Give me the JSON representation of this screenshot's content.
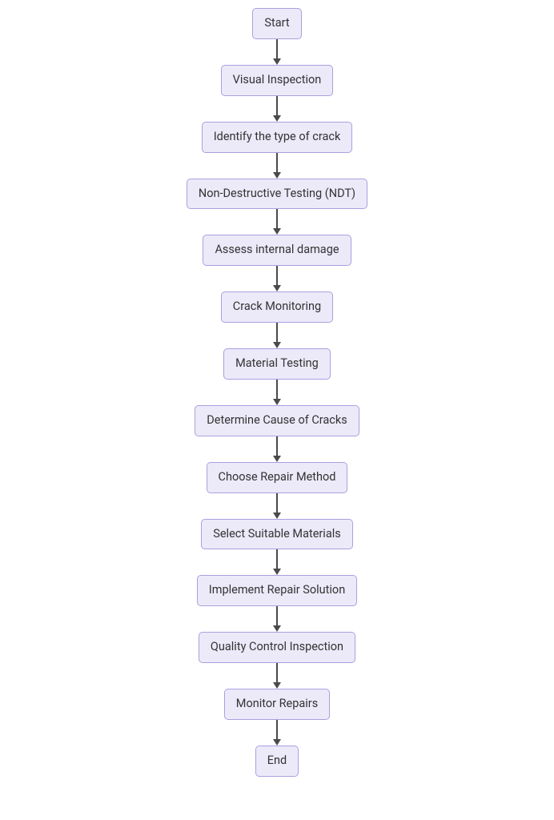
{
  "flowchart": {
    "type": "flowchart",
    "direction": "vertical",
    "background_color": "#ffffff",
    "node_fill": "#eceaf9",
    "node_border": "#a9a0e0",
    "node_text_color": "#333333",
    "node_border_radius": 5,
    "node_border_width": 1,
    "node_fontsize": 14.5,
    "node_font_weight": 400,
    "node_padding_x": 14,
    "node_padding_y": 9,
    "arrow_color": "#4a4a4a",
    "arrow_line_width": 1.5,
    "arrow_gap_height": 32,
    "arrow_head_size": 8,
    "nodes": [
      {
        "id": "start",
        "label": "Start"
      },
      {
        "id": "visual",
        "label": "Visual Inspection"
      },
      {
        "id": "identify",
        "label": "Identify the type of crack"
      },
      {
        "id": "ndt",
        "label": "Non-Destructive Testing (NDT)"
      },
      {
        "id": "assess",
        "label": "Assess internal damage"
      },
      {
        "id": "monitor",
        "label": "Crack Monitoring"
      },
      {
        "id": "material",
        "label": "Material Testing"
      },
      {
        "id": "cause",
        "label": "Determine Cause of Cracks"
      },
      {
        "id": "repair",
        "label": "Choose Repair Method"
      },
      {
        "id": "select",
        "label": "Select Suitable Materials"
      },
      {
        "id": "impl",
        "label": "Implement Repair Solution"
      },
      {
        "id": "qc",
        "label": "Quality Control Inspection"
      },
      {
        "id": "mrepair",
        "label": "Monitor Repairs"
      },
      {
        "id": "end",
        "label": "End"
      }
    ],
    "edges": [
      [
        "start",
        "visual"
      ],
      [
        "visual",
        "identify"
      ],
      [
        "identify",
        "ndt"
      ],
      [
        "ndt",
        "assess"
      ],
      [
        "assess",
        "monitor"
      ],
      [
        "monitor",
        "material"
      ],
      [
        "material",
        "cause"
      ],
      [
        "cause",
        "repair"
      ],
      [
        "repair",
        "select"
      ],
      [
        "select",
        "impl"
      ],
      [
        "impl",
        "qc"
      ],
      [
        "qc",
        "mrepair"
      ],
      [
        "mrepair",
        "end"
      ]
    ]
  }
}
